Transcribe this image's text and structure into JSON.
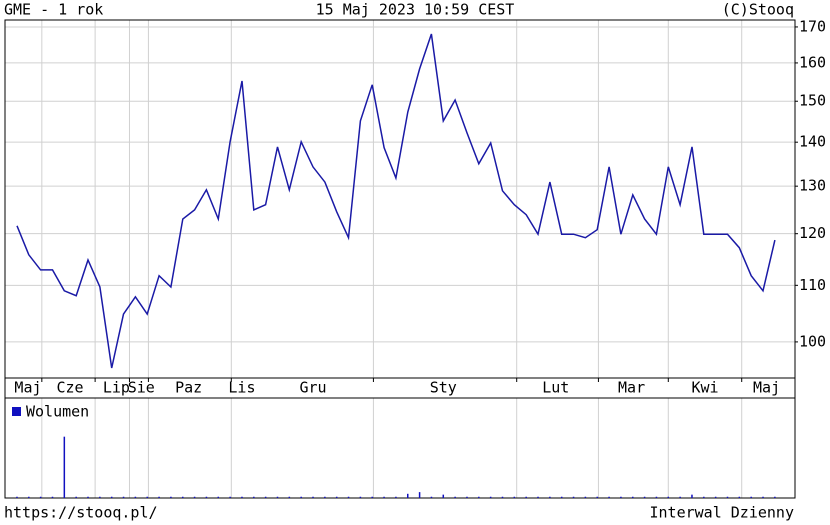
{
  "chart_data": {
    "type": "line",
    "title": "GME - 1 rok",
    "subtitle": "15 Maj 2023 10:59 CEST",
    "source": "(C)Stooq",
    "footer_left": "https://stooq.pl/",
    "footer_right": "Interwal Dzienny",
    "log_y": true,
    "grid": true,
    "ylim": [
      94.1,
      172
    ],
    "yticks": [
      100,
      110,
      120,
      130,
      140,
      150,
      160,
      170
    ],
    "xlim": [
      -1.01,
      65.7
    ],
    "xticks": [
      {
        "value": 0.93,
        "label": "Maj"
      },
      {
        "value": 4.48,
        "label": "Cze"
      },
      {
        "value": 8.4,
        "label": "Lip"
      },
      {
        "value": 10.5,
        "label": "Sie"
      },
      {
        "value": 14.5,
        "label": "Paz"
      },
      {
        "value": 19.0,
        "label": "Lis"
      },
      {
        "value": 25.0,
        "label": "Gru"
      },
      {
        "value": 36.0,
        "label": "Sty"
      },
      {
        "value": 45.5,
        "label": "Lut"
      },
      {
        "value": 51.9,
        "label": "Mar"
      },
      {
        "value": 58.1,
        "label": "Kwi"
      },
      {
        "value": 63.3,
        "label": "Maj"
      }
    ],
    "xgrid": [
      2.1,
      6.6,
      9.5,
      11.1,
      18.1,
      30.1,
      42.2,
      49.1,
      55.0,
      61.2
    ],
    "series": [
      {
        "color": "#1a1aa6",
        "values": [
          121.6,
          115.8,
          112.9,
          112.9,
          109.0,
          108.1,
          114.8,
          109.7,
          95.7,
          104.8,
          107.9,
          104.8,
          111.8,
          109.7,
          123.0,
          124.9,
          129.2,
          123.0,
          140.1,
          155.2,
          124.9,
          126.0,
          138.9,
          129.2,
          140.1,
          134.3,
          130.9,
          124.5,
          119.2,
          145.1,
          154.2,
          138.7,
          131.8,
          147.3,
          158.4,
          168.0,
          145.1,
          150.3,
          142.2,
          135.0,
          139.8,
          129.0,
          126.0,
          123.9,
          119.9,
          130.9,
          119.9,
          119.9,
          119.2,
          120.8,
          134.3,
          119.9,
          128.1,
          123.0,
          119.9,
          134.3,
          126.0,
          138.9,
          119.9,
          119.9,
          119.9,
          117.2,
          111.8,
          109.0,
          118.7
        ]
      }
    ],
    "volume": {
      "name": "Wolumen",
      "color": "#1010c0",
      "ylim": [
        0,
        100
      ],
      "values": [
        1.5,
        1.5,
        1.5,
        1.5,
        73,
        1.5,
        1.5,
        1.5,
        1.5,
        1.5,
        1.5,
        1.5,
        1.5,
        1.5,
        1.5,
        1.5,
        1.5,
        1.5,
        1.5,
        1.5,
        1.5,
        1.5,
        1.5,
        1.5,
        1.5,
        1.5,
        1.5,
        1.5,
        1.5,
        1.5,
        1.5,
        1.5,
        1.5,
        5,
        7,
        1.5,
        4,
        1.5,
        1.5,
        1.5,
        1.5,
        1.5,
        1.5,
        1.5,
        1.5,
        1.5,
        1.5,
        1.5,
        1.5,
        1.5,
        1.5,
        1.5,
        1.5,
        1.5,
        1.5,
        1.5,
        1.5,
        4,
        1.5,
        1.5,
        1.5,
        1.5,
        1.5,
        1.5,
        1.5
      ]
    }
  }
}
